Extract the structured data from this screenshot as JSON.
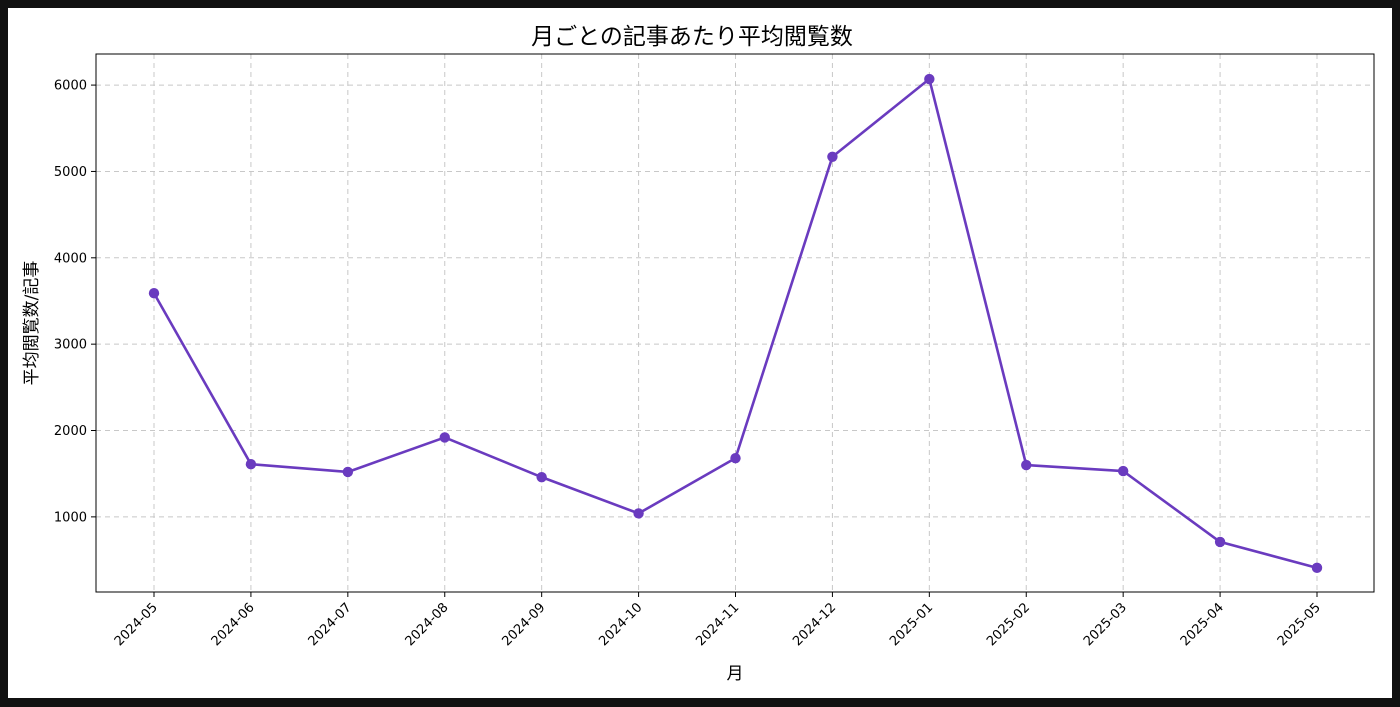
{
  "chart_data": {
    "type": "line",
    "title": "月ごとの記事あたり平均閲覧数",
    "xlabel": "月",
    "ylabel": "平均閲覧数/記事",
    "categories": [
      "2024-05",
      "2024-06",
      "2024-07",
      "2024-08",
      "2024-09",
      "2024-10",
      "2024-11",
      "2024-12",
      "2025-01",
      "2025-02",
      "2025-03",
      "2025-04",
      "2025-05"
    ],
    "series": [
      {
        "values": [
          3590,
          1610,
          1520,
          1920,
          1460,
          1040,
          1680,
          5170,
          6070,
          1600,
          1530,
          710,
          410
        ]
      }
    ],
    "yticks": [
      1000,
      2000,
      3000,
      4000,
      5000,
      6000
    ],
    "ylim": [
      130,
      6360
    ],
    "grid": true,
    "line_color": "#6a3bbf"
  }
}
